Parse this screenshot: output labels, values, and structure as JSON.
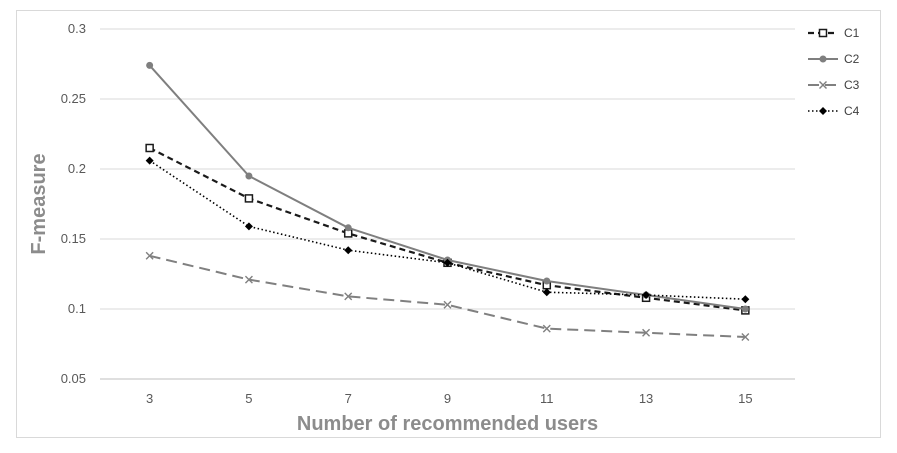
{
  "chart_data": {
    "type": "line",
    "title": "",
    "xlabel": "Number of recommended users",
    "ylabel": "F-measure",
    "x": [
      3,
      5,
      7,
      9,
      11,
      13,
      15
    ],
    "x_tick_labels": [
      "3",
      "5",
      "7",
      "9",
      "11",
      "13",
      "15"
    ],
    "ylim": [
      0.05,
      0.3
    ],
    "y_ticks": [
      0.05,
      0.1,
      0.15,
      0.2,
      0.25,
      0.3
    ],
    "y_tick_labels": [
      "0.05",
      "0.1",
      "0.15",
      "0.2",
      "0.25",
      "0.3"
    ],
    "grid": true,
    "legend_position": "right",
    "series": [
      {
        "name": "C1",
        "values": [
          0.215,
          0.179,
          0.154,
          0.133,
          0.117,
          0.108,
          0.099
        ],
        "color": "#1a1a1a",
        "dash": "dashed",
        "marker": "open-square"
      },
      {
        "name": "C2",
        "values": [
          0.274,
          0.195,
          0.158,
          0.135,
          0.12,
          0.11,
          0.1
        ],
        "color": "#7f7f7f",
        "dash": "solid",
        "marker": "circle"
      },
      {
        "name": "C3",
        "values": [
          0.138,
          0.121,
          0.109,
          0.103,
          0.086,
          0.083,
          0.08
        ],
        "color": "#808080",
        "dash": "long-dash",
        "marker": "x"
      },
      {
        "name": "C4",
        "values": [
          0.206,
          0.159,
          0.142,
          0.133,
          0.112,
          0.11,
          0.107
        ],
        "color": "#000000",
        "dash": "dotted",
        "marker": "diamond"
      }
    ]
  }
}
